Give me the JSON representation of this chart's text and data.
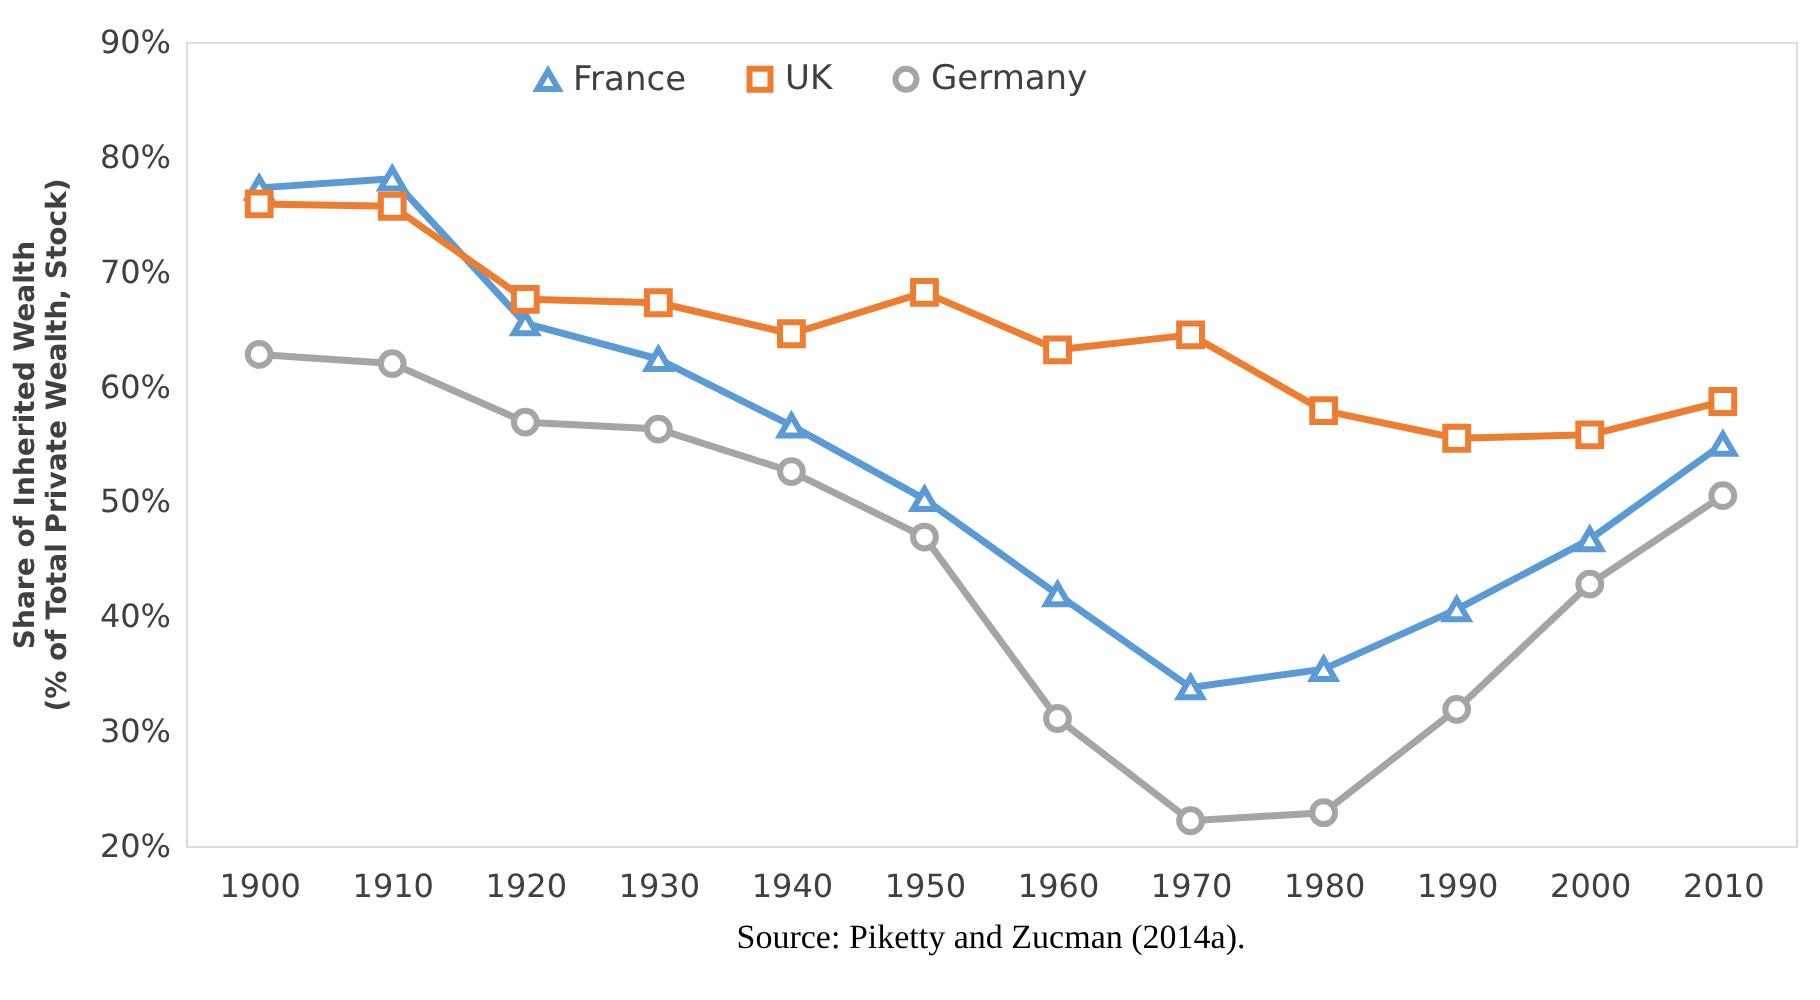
{
  "chart_data": {
    "type": "line",
    "ylabel": "Share of Inherited Wealth\n(% of Total Private Wealth, Stock)",
    "categories": [
      "1900",
      "1910",
      "1920",
      "1930",
      "1940",
      "1950",
      "1960",
      "1970",
      "1980",
      "1990",
      "2000",
      "2010"
    ],
    "series": [
      {
        "name": "France",
        "color": "#5b9bd5",
        "marker": "triangle",
        "values": [
          77.3,
          78.1,
          65.5,
          62.4,
          56.6,
          50.2,
          41.9,
          33.8,
          35.4,
          40.6,
          46.7,
          55.0
        ]
      },
      {
        "name": "UK",
        "color": "#ed7d31",
        "marker": "square",
        "values": [
          75.9,
          75.7,
          67.6,
          67.3,
          64.6,
          68.2,
          63.2,
          64.5,
          57.9,
          55.5,
          55.8,
          58.7
        ]
      },
      {
        "name": "Germany",
        "color": "#a5a5a5",
        "marker": "circle",
        "values": [
          62.8,
          62.0,
          56.9,
          56.3,
          52.6,
          46.9,
          31.1,
          22.2,
          22.9,
          31.9,
          42.8,
          50.5
        ]
      }
    ],
    "ylim": [
      20,
      90
    ],
    "yticks": [
      {
        "value": 20,
        "label": "20%"
      },
      {
        "value": 30,
        "label": "30%"
      },
      {
        "value": 40,
        "label": "40%"
      },
      {
        "value": 50,
        "label": "50%"
      },
      {
        "value": 60,
        "label": "60%"
      },
      {
        "value": 70,
        "label": "70%"
      },
      {
        "value": 80,
        "label": "80%"
      },
      {
        "value": 90,
        "label": "90%"
      }
    ],
    "grid": false,
    "legend": "top",
    "line_style": "solid",
    "annotations": [
      "Source: Piketty and Zucman (2014a)."
    ]
  }
}
